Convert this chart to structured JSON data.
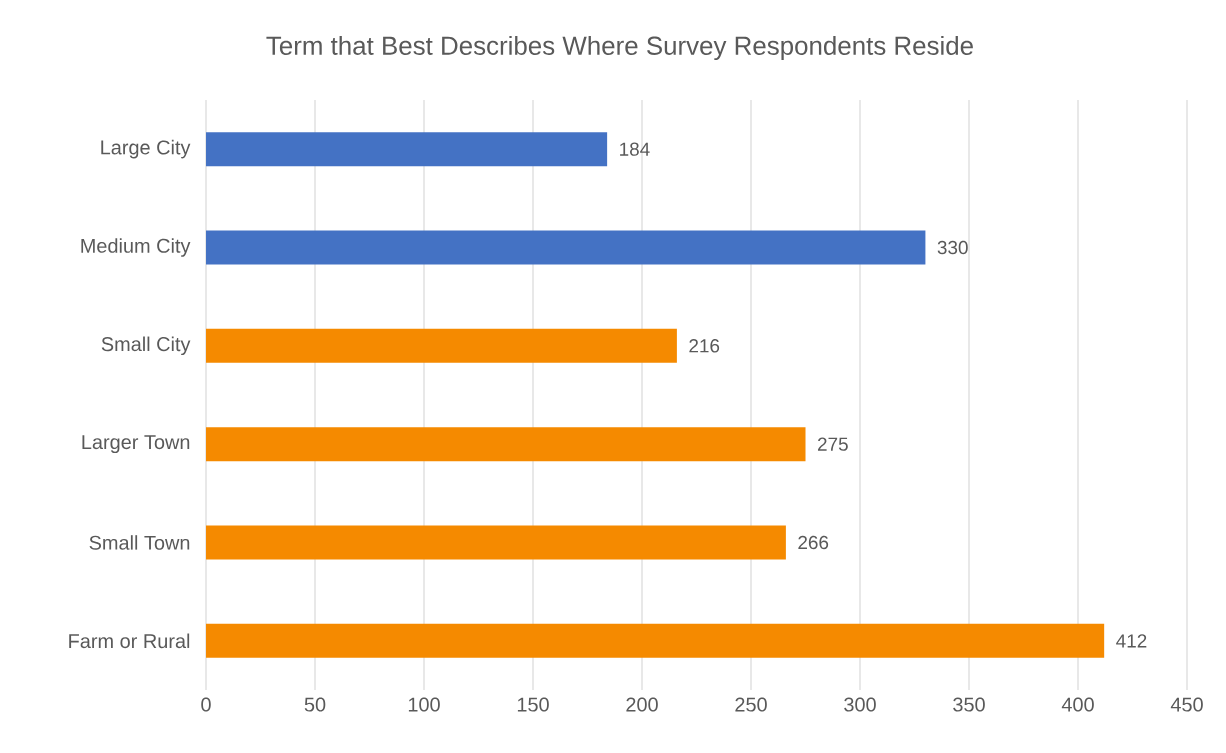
{
  "chart_data": {
    "type": "bar",
    "orientation": "horizontal",
    "title": "Term that Best Describes Where Survey Respondents Reside",
    "categories": [
      "Large City",
      "Medium City",
      "Small City",
      "Larger Town",
      "Small Town",
      "Farm or Rural"
    ],
    "values": [
      184,
      330,
      216,
      275,
      266,
      412
    ],
    "colors": [
      "#4472c4",
      "#4472c4",
      "#f58a00",
      "#f58a00",
      "#f58a00",
      "#f58a00"
    ],
    "xlim": [
      0,
      450
    ],
    "xticks": [
      0,
      50,
      100,
      150,
      200,
      250,
      300,
      350,
      400,
      450
    ],
    "grid": "x",
    "data_labels": true
  }
}
